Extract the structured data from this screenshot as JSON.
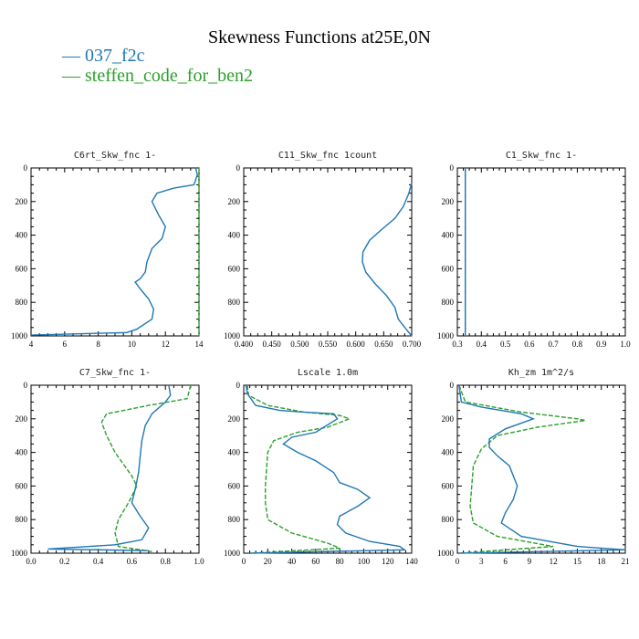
{
  "title": "Skewness Functions at25E,0N",
  "legend": [
    {
      "name": "037_f2c",
      "color": "#1f77b4"
    },
    {
      "name": "steffen_code_for_ben2",
      "color": "#2ca02c"
    }
  ],
  "chart_data": [
    {
      "type": "line",
      "title": "C6rt_Skw_fnc   1-",
      "xlim": [
        4,
        14
      ],
      "ylim": [
        1000,
        0
      ],
      "xticks": [
        "4",
        "6",
        "8",
        "10",
        "12",
        "14"
      ],
      "yticks": [
        "0",
        "200",
        "400",
        "600",
        "800",
        "1000"
      ],
      "xtickvals": [
        4,
        6,
        8,
        10,
        12,
        14
      ],
      "series": [
        {
          "name": "037_f2c",
          "points": [
            [
              13.8,
              0
            ],
            [
              13.9,
              40
            ],
            [
              13.7,
              100
            ],
            [
              12.5,
              120
            ],
            [
              11.5,
              150
            ],
            [
              11.2,
              200
            ],
            [
              11.6,
              280
            ],
            [
              12.0,
              350
            ],
            [
              11.8,
              420
            ],
            [
              11.2,
              480
            ],
            [
              10.9,
              560
            ],
            [
              10.8,
              620
            ],
            [
              10.5,
              660
            ],
            [
              10.2,
              680
            ],
            [
              10.5,
              720
            ],
            [
              11.0,
              780
            ],
            [
              11.3,
              840
            ],
            [
              11.2,
              900
            ],
            [
              10.3,
              960
            ],
            [
              9.7,
              980
            ],
            [
              4.0,
              995
            ]
          ]
        },
        {
          "name": "steffen_code_for_ben2",
          "points": [
            [
              14,
              0
            ],
            [
              14,
              1000
            ]
          ]
        }
      ]
    },
    {
      "type": "line",
      "title": "C11_Skw_fnc   1count",
      "xlim": [
        0.4,
        0.7
      ],
      "ylim": [
        1000,
        0
      ],
      "xticks": [
        "0.400",
        "0.450",
        "0.500",
        "0.550",
        "0.600",
        "0.650",
        "0.700"
      ],
      "yticks": [
        "0",
        "200",
        "400",
        "600",
        "800",
        "1000"
      ],
      "xtickvals": [
        0.4,
        0.45,
        0.5,
        0.55,
        0.6,
        0.65,
        0.7
      ],
      "series": [
        {
          "name": "037_f2c",
          "points": [
            [
              0.7,
              90
            ],
            [
              0.695,
              150
            ],
            [
              0.685,
              230
            ],
            [
              0.67,
              300
            ],
            [
              0.645,
              370
            ],
            [
              0.625,
              430
            ],
            [
              0.613,
              500
            ],
            [
              0.612,
              560
            ],
            [
              0.618,
              620
            ],
            [
              0.635,
              690
            ],
            [
              0.655,
              760
            ],
            [
              0.67,
              830
            ],
            [
              0.676,
              900
            ],
            [
              0.69,
              960
            ],
            [
              0.7,
              1000
            ]
          ]
        },
        {
          "name": "steffen_code_for_ben2",
          "points": []
        }
      ]
    },
    {
      "type": "line",
      "title": "C1_Skw_fnc   1-",
      "xlim": [
        0.3,
        1.0
      ],
      "ylim": [
        1000,
        0
      ],
      "xticks": [
        "0.3",
        "0.4",
        "0.5",
        "0.6",
        "0.7",
        "0.8",
        "0.9",
        "1.0"
      ],
      "yticks": [
        "0",
        "200",
        "400",
        "600",
        "800",
        "1000"
      ],
      "xtickvals": [
        0.3,
        0.4,
        0.5,
        0.6,
        0.7,
        0.8,
        0.9,
        1.0
      ],
      "series": [
        {
          "name": "037_f2c",
          "points": [
            [
              0.333,
              0
            ],
            [
              0.333,
              1000
            ]
          ]
        },
        {
          "name": "steffen_code_for_ben2",
          "points": [
            [
              0.333,
              0
            ],
            [
              0.333,
              1000
            ]
          ]
        }
      ]
    },
    {
      "type": "line",
      "title": "C7_Skw_fnc   1-",
      "xlim": [
        0.0,
        1.0
      ],
      "ylim": [
        1000,
        0
      ],
      "xticks": [
        "0.0",
        "0.2",
        "0.4",
        "0.6",
        "0.8",
        "1.0"
      ],
      "yticks": [
        "0",
        "200",
        "400",
        "600",
        "800",
        "1000"
      ],
      "xtickvals": [
        0,
        0.2,
        0.4,
        0.6,
        0.8,
        1.0
      ],
      "series": [
        {
          "name": "037_f2c",
          "points": [
            [
              0.82,
              0
            ],
            [
              0.83,
              60
            ],
            [
              0.8,
              100
            ],
            [
              0.72,
              170
            ],
            [
              0.68,
              240
            ],
            [
              0.66,
              330
            ],
            [
              0.65,
              420
            ],
            [
              0.64,
              520
            ],
            [
              0.62,
              620
            ],
            [
              0.6,
              700
            ],
            [
              0.65,
              780
            ],
            [
              0.7,
              850
            ],
            [
              0.66,
              920
            ],
            [
              0.5,
              950
            ],
            [
              0.1,
              975
            ],
            [
              0.7,
              985
            ]
          ]
        },
        {
          "name": "steffen_code_for_ben2",
          "points": [
            [
              0.95,
              0
            ],
            [
              0.93,
              80
            ],
            [
              0.7,
              120
            ],
            [
              0.45,
              170
            ],
            [
              0.42,
              220
            ],
            [
              0.45,
              300
            ],
            [
              0.5,
              400
            ],
            [
              0.55,
              470
            ],
            [
              0.6,
              540
            ],
            [
              0.63,
              600
            ],
            [
              0.58,
              700
            ],
            [
              0.52,
              800
            ],
            [
              0.5,
              880
            ],
            [
              0.52,
              960
            ],
            [
              0.72,
              990
            ]
          ]
        }
      ]
    },
    {
      "type": "line",
      "title": "Lscale   1.0m",
      "xlim": [
        0,
        140
      ],
      "ylim": [
        1000,
        0
      ],
      "xticks": [
        "0",
        "20",
        "40",
        "60",
        "80",
        "100",
        "120",
        "140"
      ],
      "yticks": [
        "0",
        "200",
        "400",
        "600",
        "800",
        "1000"
      ],
      "xtickvals": [
        0,
        20,
        40,
        60,
        80,
        100,
        120,
        140
      ],
      "series": [
        {
          "name": "037_f2c",
          "points": [
            [
              2,
              0
            ],
            [
              3,
              50
            ],
            [
              10,
              120
            ],
            [
              30,
              150
            ],
            [
              50,
              160
            ],
            [
              75,
              170
            ],
            [
              78,
              200
            ],
            [
              60,
              280
            ],
            [
              40,
              310
            ],
            [
              33,
              350
            ],
            [
              45,
              400
            ],
            [
              60,
              450
            ],
            [
              75,
              520
            ],
            [
              80,
              580
            ],
            [
              95,
              620
            ],
            [
              105,
              670
            ],
            [
              95,
              720
            ],
            [
              80,
              780
            ],
            [
              78,
              830
            ],
            [
              85,
              880
            ],
            [
              105,
              930
            ],
            [
              130,
              960
            ],
            [
              134,
              980
            ],
            [
              5,
              1000
            ]
          ]
        },
        {
          "name": "steffen_code_for_ben2",
          "points": [
            [
              3,
              0
            ],
            [
              4,
              60
            ],
            [
              20,
              120
            ],
            [
              50,
              160
            ],
            [
              80,
              180
            ],
            [
              88,
              200
            ],
            [
              70,
              250
            ],
            [
              45,
              280
            ],
            [
              25,
              330
            ],
            [
              20,
              400
            ],
            [
              19,
              500
            ],
            [
              18,
              600
            ],
            [
              18,
              700
            ],
            [
              20,
              800
            ],
            [
              40,
              880
            ],
            [
              70,
              940
            ],
            [
              80,
              970
            ],
            [
              6,
              1000
            ]
          ]
        }
      ]
    },
    {
      "type": "line",
      "title": "Kh_zm   1m^2/s",
      "xlim": [
        0,
        21
      ],
      "ylim": [
        1000,
        0
      ],
      "xticks": [
        "0",
        "3",
        "6",
        "9",
        "12",
        "15",
        "18",
        "21"
      ],
      "yticks": [
        "0",
        "200",
        "400",
        "600",
        "800",
        "1000"
      ],
      "xtickvals": [
        0,
        3,
        6,
        9,
        12,
        15,
        18,
        21
      ],
      "series": [
        {
          "name": "037_f2c",
          "points": [
            [
              0.2,
              0
            ],
            [
              0.5,
              100
            ],
            [
              3,
              130
            ],
            [
              8,
              170
            ],
            [
              9.5,
              200
            ],
            [
              6,
              260
            ],
            [
              4,
              320
            ],
            [
              4,
              370
            ],
            [
              5,
              420
            ],
            [
              6.5,
              480
            ],
            [
              7,
              540
            ],
            [
              7.5,
              600
            ],
            [
              7,
              680
            ],
            [
              6,
              760
            ],
            [
              5.5,
              820
            ],
            [
              8,
              900
            ],
            [
              15,
              960
            ],
            [
              21,
              980
            ],
            [
              0.2,
              1000
            ]
          ]
        },
        {
          "name": "steffen_code_for_ben2",
          "points": [
            [
              0.2,
              0
            ],
            [
              1,
              100
            ],
            [
              8,
              160
            ],
            [
              15,
              200
            ],
            [
              16,
              210
            ],
            [
              10,
              250
            ],
            [
              5,
              300
            ],
            [
              3,
              380
            ],
            [
              2,
              480
            ],
            [
              1.8,
              600
            ],
            [
              1.6,
              720
            ],
            [
              2,
              820
            ],
            [
              5,
              900
            ],
            [
              12,
              960
            ],
            [
              0.2,
              1000
            ]
          ]
        }
      ]
    }
  ]
}
